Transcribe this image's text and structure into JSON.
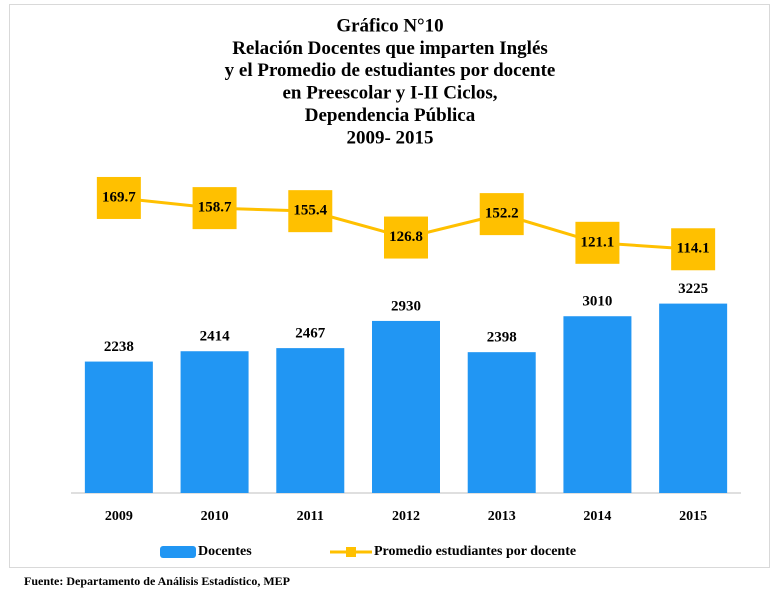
{
  "chart_data": {
    "type": "bar_line",
    "title": [
      "Gráfico N°10",
      "Relación Docentes que imparten Inglés",
      "y el Promedio de estudiantes  por docente",
      "en Preescolar y I-II  Ciclos,",
      "Dependencia Pública",
      "2009- 2015"
    ],
    "categories": [
      "2009",
      "2010",
      "2011",
      "2012",
      "2013",
      "2014",
      "2015"
    ],
    "series": [
      {
        "name": "Docentes",
        "type": "bar",
        "color": "#2196f3",
        "values": [
          2238,
          2414,
          2467,
          2930,
          2398,
          3010,
          3225
        ]
      },
      {
        "name": "Promedio estudiantes por docente",
        "type": "line",
        "axis": "y2",
        "color": "#ffc000",
        "values": [
          169.7,
          158.7,
          155.4,
          126.8,
          152.2,
          121.1,
          114.1
        ]
      }
    ],
    "ylim": [
      0,
      5500
    ],
    "y2lim": [
      -150,
      200
    ],
    "source": "Fuente:  Departamento   de Análisis Estadístico,  MEP"
  }
}
